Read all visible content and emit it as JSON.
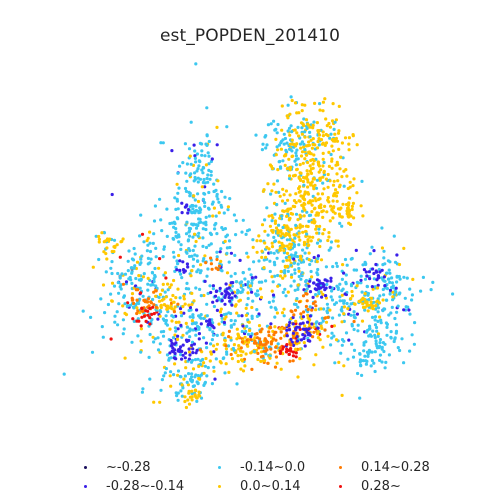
{
  "title": "est_POPDEN_201410",
  "legend": [
    {
      "label": "~-0.28",
      "color": "#1a0f5c"
    },
    {
      "label": "-0.28~-0.14",
      "color": "#3a1fe8"
    },
    {
      "label": "-0.14~0.0",
      "color": "#3cc8f0"
    },
    {
      "label": "0.14~0.28",
      "color": "#ff7a00"
    },
    {
      "label": "0.0~0.14",
      "color": "#ffc800"
    },
    {
      "label": "0.28~",
      "color": "#f01010"
    }
  ]
}
